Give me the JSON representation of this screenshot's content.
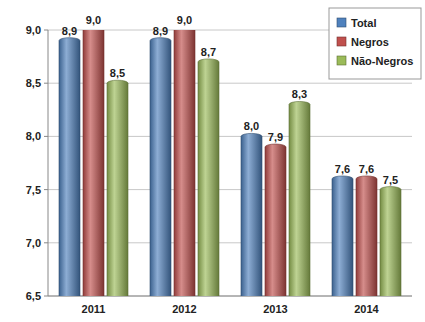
{
  "chart_data": {
    "type": "bar",
    "categories": [
      "2011",
      "2012",
      "2013",
      "2014"
    ],
    "series": [
      {
        "name": "Total",
        "color": "#4f81bd",
        "values": [
          8.9,
          8.9,
          8.0,
          7.6
        ],
        "value_labels": [
          "8,9",
          "8,9",
          "8,0",
          "7,6"
        ]
      },
      {
        "name": "Negros",
        "color": "#c0504d",
        "values": [
          9.0,
          9.0,
          7.9,
          7.6
        ],
        "value_labels": [
          "9,0",
          "9,0",
          "7,9",
          "7,6"
        ]
      },
      {
        "name": "Não-Negros",
        "color": "#9bbb59",
        "values": [
          8.5,
          8.7,
          8.3,
          7.5
        ],
        "value_labels": [
          "8,5",
          "8,7",
          "8,3",
          "7,5"
        ]
      }
    ],
    "ylim": [
      6.5,
      9.0
    ],
    "yticks": [
      {
        "value": 6.5,
        "label": "6,5"
      },
      {
        "value": 7.0,
        "label": "7,0"
      },
      {
        "value": 7.5,
        "label": "7,5"
      },
      {
        "value": 8.0,
        "label": "8,0"
      },
      {
        "value": 8.5,
        "label": "8,5"
      },
      {
        "value": 9.0,
        "label": "9,0"
      }
    ],
    "grid": true,
    "legend": "top-right",
    "data_labels": true
  }
}
